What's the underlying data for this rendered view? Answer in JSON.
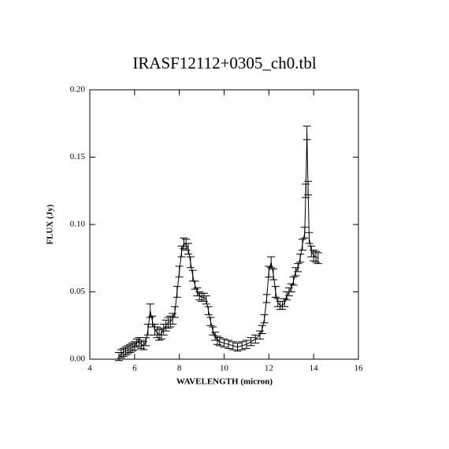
{
  "chart_data": {
    "type": "line",
    "title": "IRASF12112+0305_ch0.tbl",
    "x_label": "WAVELENGTH (micron)",
    "y_label": "FLUX (Jy)",
    "xlim": [
      4,
      16
    ],
    "ylim": [
      0,
      0.2
    ],
    "xticks": [
      4,
      6,
      8,
      10,
      12,
      14,
      16
    ],
    "yticks": [
      {
        "value": 0,
        "label": "0.00"
      },
      {
        "value": 0.05,
        "label": "0.05"
      },
      {
        "value": 0.1,
        "label": "0.10"
      },
      {
        "value": 0.15,
        "label": "0.15"
      },
      {
        "value": 0.2,
        "label": "0.20"
      }
    ],
    "color": "#000000",
    "x": [
      5.3,
      5.4,
      5.5,
      5.6,
      5.7,
      5.8,
      5.9,
      6.0,
      6.1,
      6.2,
      6.3,
      6.4,
      6.5,
      6.6,
      6.7,
      6.8,
      6.9,
      7.0,
      7.1,
      7.2,
      7.3,
      7.4,
      7.5,
      7.6,
      7.7,
      7.8,
      7.9,
      8.0,
      8.1,
      8.2,
      8.3,
      8.4,
      8.5,
      8.6,
      8.7,
      8.8,
      8.9,
      9.0,
      9.1,
      9.2,
      9.3,
      9.4,
      9.5,
      9.6,
      9.7,
      9.8,
      10.0,
      10.2,
      10.4,
      10.6,
      10.8,
      11.0,
      11.2,
      11.4,
      11.6,
      11.7,
      11.8,
      11.9,
      12.0,
      12.1,
      12.2,
      12.3,
      12.4,
      12.5,
      12.6,
      12.7,
      12.8,
      12.9,
      13.0,
      13.1,
      13.2,
      13.3,
      13.4,
      13.5,
      13.6,
      13.65,
      13.7,
      13.75,
      13.8,
      13.9,
      14.0,
      14.1,
      14.2
    ],
    "values": [
      0.002,
      0.004,
      0.005,
      0.006,
      0.007,
      0.008,
      0.009,
      0.01,
      0.012,
      0.013,
      0.011,
      0.01,
      0.013,
      0.022,
      0.036,
      0.028,
      0.022,
      0.02,
      0.018,
      0.019,
      0.022,
      0.025,
      0.027,
      0.028,
      0.03,
      0.035,
      0.05,
      0.065,
      0.08,
      0.086,
      0.085,
      0.082,
      0.072,
      0.062,
      0.055,
      0.05,
      0.047,
      0.046,
      0.046,
      0.044,
      0.036,
      0.028,
      0.021,
      0.017,
      0.014,
      0.013,
      0.012,
      0.011,
      0.01,
      0.009,
      0.01,
      0.011,
      0.013,
      0.015,
      0.018,
      0.022,
      0.03,
      0.045,
      0.065,
      0.072,
      0.063,
      0.05,
      0.042,
      0.04,
      0.04,
      0.042,
      0.047,
      0.05,
      0.053,
      0.058,
      0.065,
      0.068,
      0.075,
      0.085,
      0.094,
      0.125,
      0.168,
      0.127,
      0.09,
      0.08,
      0.077,
      0.076,
      0.075
    ],
    "errors": [
      0.003,
      0.003,
      0.003,
      0.003,
      0.003,
      0.003,
      0.003,
      0.003,
      0.003,
      0.003,
      0.003,
      0.003,
      0.003,
      0.004,
      0.005,
      0.004,
      0.004,
      0.004,
      0.004,
      0.004,
      0.004,
      0.004,
      0.004,
      0.004,
      0.004,
      0.004,
      0.004,
      0.004,
      0.004,
      0.004,
      0.004,
      0.004,
      0.004,
      0.004,
      0.003,
      0.003,
      0.003,
      0.003,
      0.003,
      0.003,
      0.003,
      0.003,
      0.003,
      0.003,
      0.003,
      0.003,
      0.003,
      0.003,
      0.003,
      0.003,
      0.003,
      0.003,
      0.003,
      0.003,
      0.003,
      0.003,
      0.003,
      0.003,
      0.004,
      0.004,
      0.004,
      0.004,
      0.003,
      0.003,
      0.003,
      0.003,
      0.003,
      0.003,
      0.003,
      0.003,
      0.003,
      0.003,
      0.003,
      0.004,
      0.004,
      0.005,
      0.005,
      0.005,
      0.004,
      0.004,
      0.004,
      0.004,
      0.004
    ]
  }
}
